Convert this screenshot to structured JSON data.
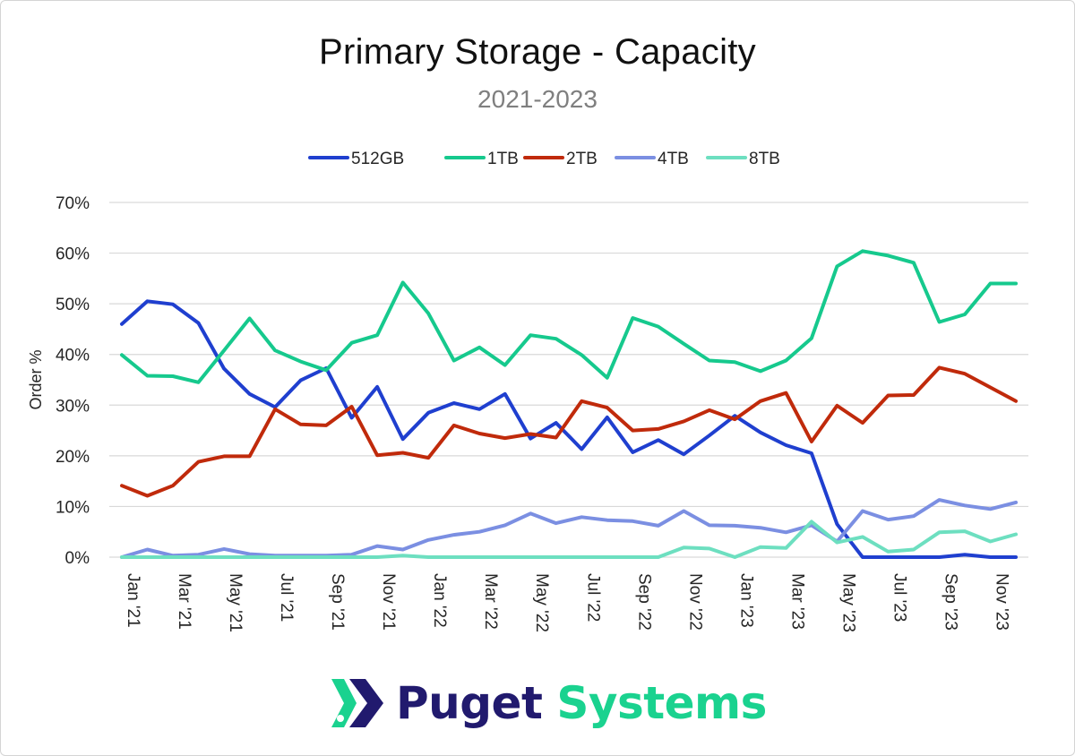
{
  "chart_data": {
    "type": "line",
    "title": "Primary Storage - Capacity",
    "subtitle": "2021-2023",
    "xlabel": "",
    "ylabel": "Order %",
    "ylim": [
      0,
      70
    ],
    "y_ticks": [
      "0%",
      "10%",
      "20%",
      "30%",
      "40%",
      "50%",
      "60%",
      "70%"
    ],
    "grid": true,
    "legend_position": "top-center",
    "x": [
      "Jan '21",
      "Feb '21",
      "Mar '21",
      "Apr '21",
      "May '21",
      "Jun '21",
      "Jul '21",
      "Aug '21",
      "Sep '21",
      "Oct '21",
      "Nov '21",
      "Dec '21",
      "Jan '22",
      "Feb '22",
      "Mar '22",
      "Apr '22",
      "May '22",
      "Jun '22",
      "Jul '22",
      "Aug '22",
      "Sep '22",
      "Oct '22",
      "Nov '22",
      "Dec '22",
      "Jan '23",
      "Feb '23",
      "Mar '23",
      "Apr '23",
      "May '23",
      "Jun '23",
      "Jul '23",
      "Aug '23",
      "Sep '23",
      "Oct '23",
      "Nov '23",
      "Dec '23"
    ],
    "x_tick_labels": [
      "Jan '21",
      "Mar '21",
      "May '21",
      "Jul '21",
      "Sep '21",
      "Nov '21",
      "Jan '22",
      "Mar '22",
      "May '22",
      "Jul '22",
      "Sep '22",
      "Nov '22",
      "Jan '23",
      "Mar '23",
      "May '23",
      "Jul '23",
      "Sep '23",
      "Nov '23"
    ],
    "series": [
      {
        "name": "512GB",
        "color": "#1f3fcf",
        "values": [
          46.0,
          50.5,
          49.9,
          46.2,
          37.2,
          32.2,
          29.6,
          34.9,
          37.3,
          27.5,
          33.6,
          23.3,
          28.5,
          30.4,
          29.2,
          32.2,
          23.4,
          26.5,
          21.3,
          27.6,
          20.7,
          23.1,
          20.3,
          24.0,
          27.9,
          24.6,
          22.1,
          20.5,
          6.5,
          0.0,
          0.0,
          0.0,
          0.0,
          0.5,
          0.0,
          0.0
        ]
      },
      {
        "name": "1TB",
        "color": "#16c98d",
        "values": [
          39.9,
          35.8,
          35.7,
          34.5,
          40.8,
          47.1,
          40.8,
          38.6,
          36.9,
          42.3,
          43.8,
          54.2,
          48.1,
          38.8,
          41.4,
          37.9,
          43.8,
          43.1,
          39.9,
          35.4,
          47.2,
          45.5,
          42.1,
          38.8,
          38.5,
          36.7,
          38.8,
          43.2,
          57.4,
          60.4,
          59.5,
          58.1,
          46.4,
          47.9,
          54.0,
          54.0
        ]
      },
      {
        "name": "2TB",
        "color": "#c02a0b",
        "values": [
          14.1,
          12.1,
          14.1,
          18.8,
          19.9,
          19.9,
          29.2,
          26.2,
          26.0,
          29.7,
          20.1,
          20.6,
          19.6,
          26.0,
          24.4,
          23.5,
          24.3,
          23.6,
          30.8,
          29.5,
          25.0,
          25.3,
          26.8,
          29.0,
          27.2,
          30.8,
          32.4,
          22.8,
          29.9,
          26.5,
          31.9,
          32.0,
          37.4,
          36.2,
          33.5,
          30.8
        ]
      },
      {
        "name": "4TB",
        "color": "#7b8fe2",
        "values": [
          0.0,
          1.5,
          0.3,
          0.5,
          1.6,
          0.6,
          0.3,
          0.3,
          0.3,
          0.5,
          2.2,
          1.5,
          3.4,
          4.4,
          5.0,
          6.3,
          8.6,
          6.7,
          7.9,
          7.3,
          7.1,
          6.2,
          9.1,
          6.3,
          6.2,
          5.8,
          4.9,
          6.3,
          3.1,
          9.1,
          7.4,
          8.1,
          11.3,
          10.2,
          9.5,
          10.8
        ]
      },
      {
        "name": "8TB",
        "color": "#6ddfc0",
        "values": [
          0.0,
          0.0,
          0.0,
          0.0,
          0.0,
          0.0,
          0.0,
          0.0,
          0.0,
          0.0,
          0.0,
          0.3,
          0.0,
          0.0,
          0.0,
          0.0,
          0.0,
          0.0,
          0.0,
          0.0,
          0.0,
          0.0,
          1.9,
          1.7,
          0.0,
          2.0,
          1.8,
          7.0,
          2.9,
          4.0,
          1.1,
          1.5,
          4.9,
          5.1,
          3.1,
          4.5
        ]
      }
    ]
  },
  "logo": {
    "word1": "Puget",
    "word2": "Systems",
    "colors": {
      "navy": "#211a6e",
      "green": "#1ad28f"
    }
  }
}
